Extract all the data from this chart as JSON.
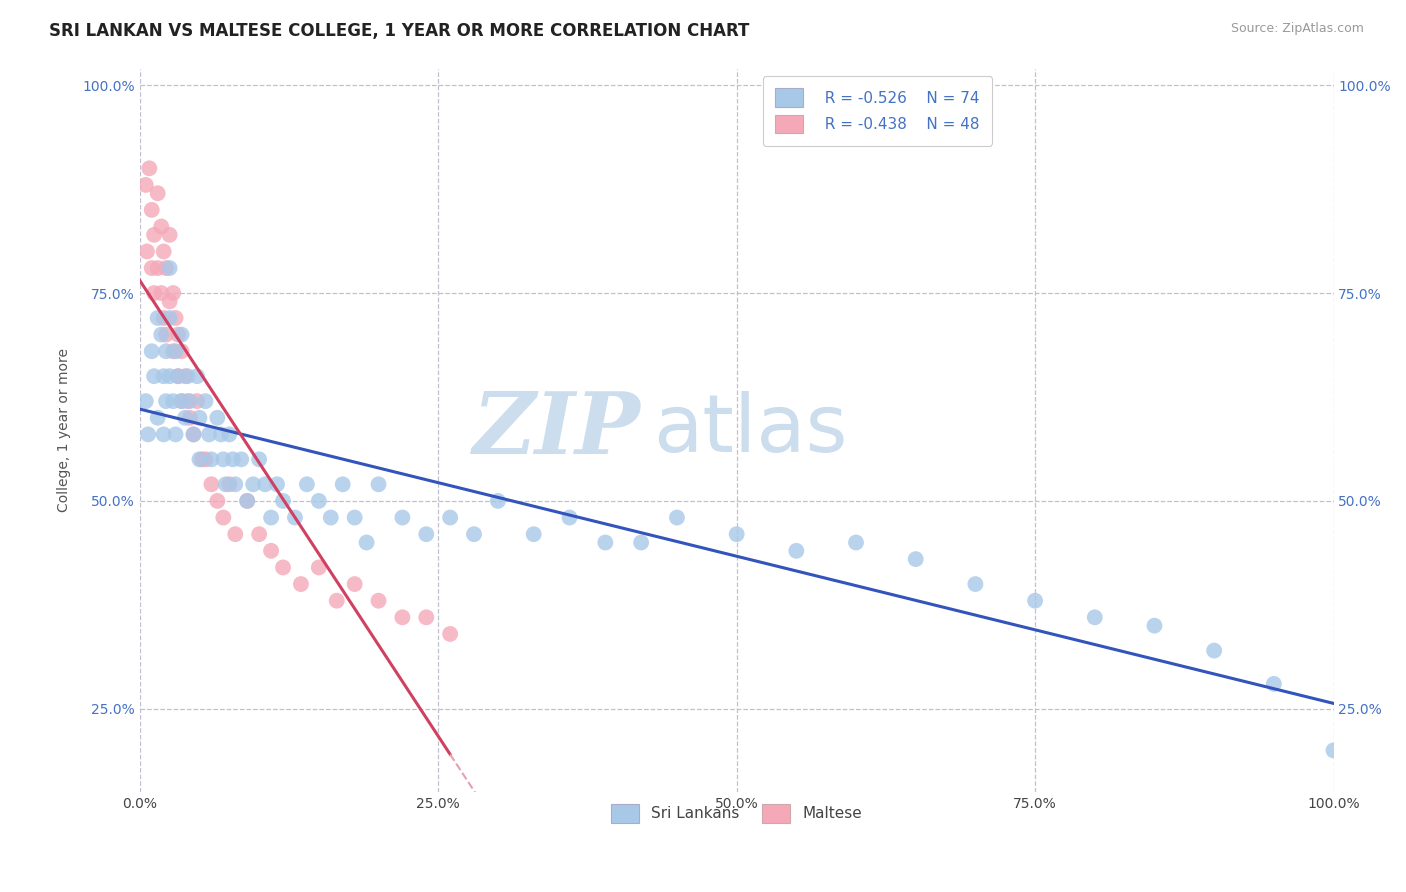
{
  "title": "SRI LANKAN VS MALTESE COLLEGE, 1 YEAR OR MORE CORRELATION CHART",
  "source_text": "Source: ZipAtlas.com",
  "ylabel": "College, 1 year or more",
  "xlim": [
    0.0,
    1.0
  ],
  "ylim": [
    0.15,
    1.02
  ],
  "x_tick_labels": [
    "0.0%",
    "25.0%",
    "50.0%",
    "75.0%",
    "100.0%"
  ],
  "x_tick_vals": [
    0.0,
    0.25,
    0.5,
    0.75,
    1.0
  ],
  "y_tick_labels": [
    "25.0%",
    "50.0%",
    "75.0%",
    "100.0%"
  ],
  "y_tick_vals": [
    0.25,
    0.5,
    0.75,
    1.0
  ],
  "sri_lankan_color": "#a8c8e8",
  "maltese_color": "#f4a8b8",
  "sri_lankan_line_color": "#3355bb",
  "maltese_line_color": "#d04060",
  "maltese_dash_color": "#e8a0b0",
  "watermark_color": "#ccdded",
  "legend_sri_r": "R = -0.526",
  "legend_sri_n": "N = 74",
  "legend_malt_r": "R = -0.438",
  "legend_malt_n": "N = 48",
  "sri_x": [
    0.005,
    0.007,
    0.01,
    0.012,
    0.015,
    0.015,
    0.018,
    0.02,
    0.02,
    0.022,
    0.022,
    0.025,
    0.025,
    0.025,
    0.028,
    0.03,
    0.03,
    0.032,
    0.035,
    0.035,
    0.038,
    0.04,
    0.042,
    0.045,
    0.048,
    0.05,
    0.05,
    0.055,
    0.058,
    0.06,
    0.065,
    0.068,
    0.07,
    0.072,
    0.075,
    0.078,
    0.08,
    0.085,
    0.09,
    0.095,
    0.1,
    0.105,
    0.11,
    0.115,
    0.12,
    0.13,
    0.14,
    0.15,
    0.16,
    0.17,
    0.18,
    0.19,
    0.2,
    0.22,
    0.24,
    0.26,
    0.28,
    0.3,
    0.33,
    0.36,
    0.39,
    0.42,
    0.45,
    0.5,
    0.55,
    0.6,
    0.65,
    0.7,
    0.75,
    0.8,
    0.85,
    0.9,
    0.95,
    1.0
  ],
  "sri_y": [
    0.62,
    0.58,
    0.68,
    0.65,
    0.72,
    0.6,
    0.7,
    0.65,
    0.58,
    0.68,
    0.62,
    0.78,
    0.72,
    0.65,
    0.62,
    0.68,
    0.58,
    0.65,
    0.7,
    0.62,
    0.6,
    0.65,
    0.62,
    0.58,
    0.65,
    0.6,
    0.55,
    0.62,
    0.58,
    0.55,
    0.6,
    0.58,
    0.55,
    0.52,
    0.58,
    0.55,
    0.52,
    0.55,
    0.5,
    0.52,
    0.55,
    0.52,
    0.48,
    0.52,
    0.5,
    0.48,
    0.52,
    0.5,
    0.48,
    0.52,
    0.48,
    0.45,
    0.52,
    0.48,
    0.46,
    0.48,
    0.46,
    0.5,
    0.46,
    0.48,
    0.45,
    0.45,
    0.48,
    0.46,
    0.44,
    0.45,
    0.43,
    0.4,
    0.38,
    0.36,
    0.35,
    0.32,
    0.28,
    0.2
  ],
  "malt_x": [
    0.005,
    0.006,
    0.008,
    0.01,
    0.01,
    0.012,
    0.012,
    0.015,
    0.015,
    0.018,
    0.018,
    0.02,
    0.02,
    0.022,
    0.022,
    0.025,
    0.025,
    0.028,
    0.028,
    0.03,
    0.032,
    0.032,
    0.035,
    0.035,
    0.038,
    0.04,
    0.042,
    0.045,
    0.048,
    0.052,
    0.055,
    0.06,
    0.065,
    0.07,
    0.075,
    0.08,
    0.09,
    0.1,
    0.11,
    0.12,
    0.135,
    0.15,
    0.165,
    0.18,
    0.2,
    0.22,
    0.24,
    0.26
  ],
  "malt_y": [
    0.88,
    0.8,
    0.9,
    0.85,
    0.78,
    0.82,
    0.75,
    0.87,
    0.78,
    0.83,
    0.75,
    0.8,
    0.72,
    0.78,
    0.7,
    0.82,
    0.74,
    0.75,
    0.68,
    0.72,
    0.7,
    0.65,
    0.68,
    0.62,
    0.65,
    0.62,
    0.6,
    0.58,
    0.62,
    0.55,
    0.55,
    0.52,
    0.5,
    0.48,
    0.52,
    0.46,
    0.5,
    0.46,
    0.44,
    0.42,
    0.4,
    0.42,
    0.38,
    0.4,
    0.38,
    0.36,
    0.36,
    0.34
  ],
  "background_color": "#ffffff",
  "grid_color": "#c0c0d0",
  "title_fontsize": 12,
  "axis_label_fontsize": 10,
  "tick_fontsize": 10,
  "legend_fontsize": 11,
  "source_fontsize": 9
}
